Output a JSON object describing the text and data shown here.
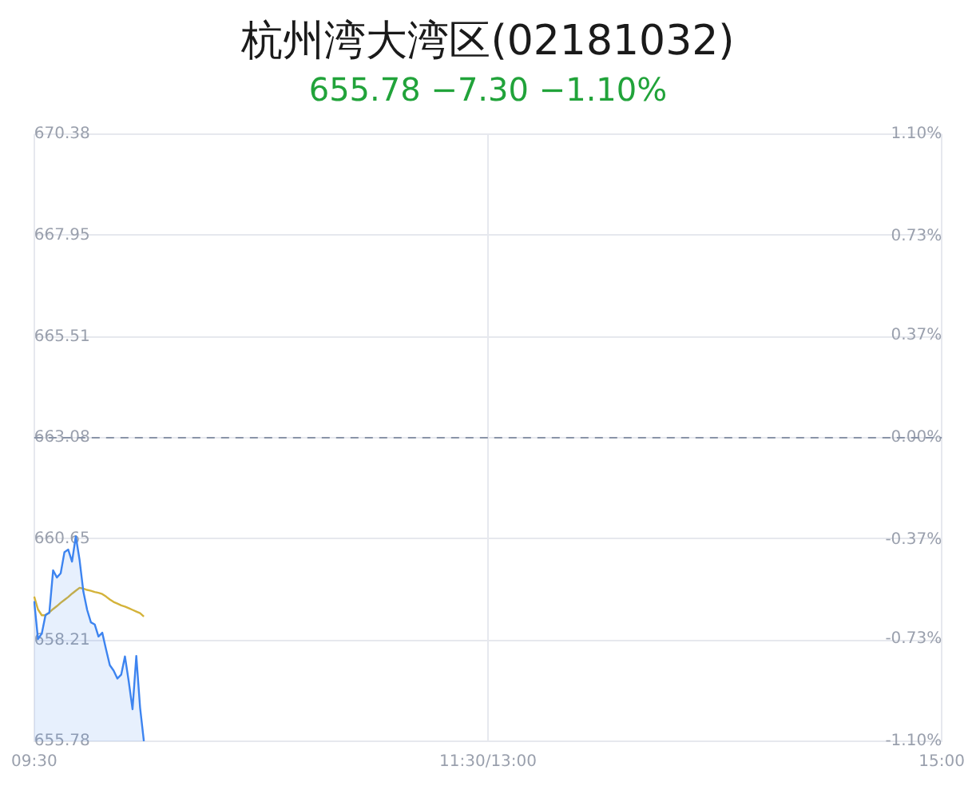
{
  "chart_data": {
    "type": "area",
    "title": "杭州湾大湾区(02181032)",
    "subtitle": "655.78 −7.30 −1.10%",
    "categories": [
      "09:30",
      null,
      null,
      null,
      null,
      null,
      null,
      null,
      null,
      null,
      null,
      null,
      null,
      null,
      null,
      null,
      null,
      null,
      null,
      null,
      null,
      null,
      null,
      null,
      null,
      null,
      null,
      null,
      null,
      null,
      null,
      null,
      null,
      null,
      null,
      null,
      null,
      null,
      null,
      null,
      null,
      null,
      null,
      null,
      null,
      null,
      null,
      null,
      null,
      null,
      null,
      null,
      null,
      null,
      null,
      null,
      null,
      null,
      null,
      null,
      null,
      null,
      null,
      null,
      null,
      null,
      null,
      null,
      null,
      null,
      null,
      null,
      null,
      null,
      null,
      null,
      null,
      null,
      null,
      null,
      null,
      null,
      null,
      null,
      null,
      null,
      null,
      null,
      null,
      null,
      null,
      null,
      null,
      null,
      null,
      null,
      null,
      null,
      null,
      null,
      null,
      null,
      null,
      null,
      null,
      null,
      null,
      null,
      null,
      null,
      null,
      null,
      null,
      null,
      null,
      null,
      null,
      null,
      null,
      null,
      "11:30/13:00",
      null,
      null,
      null,
      null,
      null,
      null,
      null,
      null,
      null,
      null,
      null,
      null,
      null,
      null,
      null,
      null,
      null,
      null,
      null,
      null,
      null,
      null,
      null,
      null,
      null,
      null,
      null,
      null,
      null,
      null,
      null,
      null,
      null,
      null,
      null,
      null,
      null,
      null,
      null,
      null,
      null,
      null,
      null,
      null,
      null,
      null,
      null,
      null,
      null,
      null,
      null,
      null,
      null,
      null,
      null,
      null,
      null,
      null,
      null,
      null,
      null,
      null,
      null,
      null,
      null,
      null,
      null,
      null,
      null,
      null,
      null,
      null,
      null,
      null,
      null,
      null,
      null,
      null,
      null,
      null,
      null,
      null,
      null,
      null,
      null,
      null,
      null,
      null,
      null,
      null,
      null,
      null,
      null,
      null,
      null,
      null,
      null,
      null,
      null,
      null,
      null,
      null,
      null,
      null,
      null,
      null,
      null,
      null,
      null,
      null,
      null,
      null,
      null,
      null,
      null,
      null,
      null,
      null,
      null,
      "15:00"
    ],
    "ylim": [
      655.78,
      670.38
    ],
    "yticks": [
      655.78,
      658.21,
      660.65,
      663.08,
      665.51,
      667.95,
      670.38
    ],
    "y2lim": [
      -1.1,
      1.1
    ],
    "y2ticks": [
      {
        "value": -1.1,
        "label": "-1.10%"
      },
      {
        "value": -0.73,
        "label": "-0.73%"
      },
      {
        "value": -0.37,
        "label": "-0.37%"
      },
      {
        "value": 0,
        "label": "0.00%"
      },
      {
        "value": 0.37,
        "label": "0.37%"
      },
      {
        "value": 0.73,
        "label": "0.73%"
      },
      {
        "value": 1.1,
        "label": "1.10%"
      }
    ],
    "grid": true,
    "legend": false,
    "ref_lines": [
      {
        "axis": "y",
        "value": 663.08,
        "color": "#8a94a8",
        "line_style": "dashed"
      }
    ],
    "series": [
      {
        "color": "#3d84f0",
        "values": [
          659.15,
          658.24,
          658.37,
          658.82,
          658.87,
          659.89,
          659.72,
          659.82,
          660.33,
          660.39,
          660.1,
          660.71,
          660.14,
          659.38,
          658.94,
          658.64,
          658.59,
          658.3,
          658.39,
          657.99,
          657.61,
          657.48,
          657.29,
          657.38,
          657.82,
          657.22,
          656.55,
          657.83,
          656.59,
          655.78,
          null,
          null,
          null,
          null,
          null,
          null,
          null,
          null,
          null,
          null,
          null,
          null,
          null,
          null,
          null,
          null,
          null,
          null,
          null,
          null,
          null,
          null,
          null,
          null,
          null,
          null,
          null,
          null,
          null,
          null,
          null,
          null,
          null,
          null,
          null,
          null,
          null,
          null,
          null,
          null,
          null,
          null,
          null,
          null,
          null,
          null,
          null,
          null,
          null,
          null,
          null,
          null,
          null,
          null,
          null,
          null,
          null,
          null,
          null,
          null,
          null,
          null,
          null,
          null,
          null,
          null,
          null,
          null,
          null,
          null,
          null,
          null,
          null,
          null,
          null,
          null,
          null,
          null,
          null,
          null,
          null,
          null,
          null,
          null,
          null,
          null,
          null,
          null,
          null,
          null,
          null,
          null,
          null,
          null,
          null,
          null,
          null,
          null,
          null,
          null,
          null,
          null,
          null,
          null,
          null,
          null,
          null,
          null,
          null,
          null,
          null,
          null,
          null,
          null,
          null,
          null,
          null,
          null,
          null,
          null,
          null,
          null,
          null,
          null,
          null,
          null,
          null,
          null,
          null,
          null,
          null,
          null,
          null,
          null,
          null,
          null,
          null,
          null,
          null,
          null,
          null,
          null,
          null,
          null,
          null,
          null,
          null,
          null,
          null,
          null,
          null,
          null,
          null,
          null,
          null,
          null,
          null,
          null,
          null,
          null,
          null,
          null,
          null,
          null,
          null,
          null,
          null,
          null,
          null,
          null,
          null,
          null,
          null,
          null,
          null,
          null,
          null,
          null,
          null,
          null,
          null,
          null,
          null,
          null,
          null,
          null,
          null,
          null,
          null,
          null,
          null,
          null,
          null,
          null,
          null,
          null,
          null,
          null,
          null,
          null,
          null,
          null,
          null,
          null,
          null,
          null,
          null,
          null,
          null,
          null,
          null
        ]
      },
      {
        "type": "line",
        "color": "#d4b33a",
        "values": [
          659.26,
          658.95,
          658.81,
          658.81,
          658.88,
          658.96,
          659.03,
          659.11,
          659.18,
          659.25,
          659.33,
          659.4,
          659.47,
          659.45,
          659.42,
          659.4,
          659.37,
          659.35,
          659.32,
          659.26,
          659.19,
          659.13,
          659.09,
          659.05,
          659.02,
          658.98,
          658.94,
          658.9,
          658.86,
          658.78,
          null,
          null,
          null,
          null,
          null,
          null,
          null,
          null,
          null,
          null,
          null,
          null,
          null,
          null,
          null,
          null,
          null,
          null,
          null,
          null,
          null,
          null,
          null,
          null,
          null,
          null,
          null,
          null,
          null,
          null,
          null,
          null,
          null,
          null,
          null,
          null,
          null,
          null,
          null,
          null,
          null,
          null,
          null,
          null,
          null,
          null,
          null,
          null,
          null,
          null,
          null,
          null,
          null,
          null,
          null,
          null,
          null,
          null,
          null,
          null,
          null,
          null,
          null,
          null,
          null,
          null,
          null,
          null,
          null,
          null,
          null,
          null,
          null,
          null,
          null,
          null,
          null,
          null,
          null,
          null,
          null,
          null,
          null,
          null,
          null,
          null,
          null,
          null,
          null,
          null,
          null,
          null,
          null,
          null,
          null,
          null,
          null,
          null,
          null,
          null,
          null,
          null,
          null,
          null,
          null,
          null,
          null,
          null,
          null,
          null,
          null,
          null,
          null,
          null,
          null,
          null,
          null,
          null,
          null,
          null,
          null,
          null,
          null,
          null,
          null,
          null,
          null,
          null,
          null,
          null,
          null,
          null,
          null,
          null,
          null,
          null,
          null,
          null,
          null,
          null,
          null,
          null,
          null,
          null,
          null,
          null,
          null,
          null,
          null,
          null,
          null,
          null,
          null,
          null,
          null,
          null,
          null,
          null,
          null,
          null,
          null,
          null,
          null,
          null,
          null,
          null,
          null,
          null,
          null,
          null,
          null,
          null,
          null,
          null,
          null,
          null,
          null,
          null,
          null,
          null,
          null,
          null,
          null,
          null,
          null,
          null,
          null,
          null,
          null,
          null,
          null,
          null,
          null,
          null,
          null,
          null,
          null,
          null,
          null,
          null,
          null,
          null,
          null,
          null,
          null,
          null,
          null,
          null,
          null,
          null,
          null
        ]
      }
    ]
  }
}
